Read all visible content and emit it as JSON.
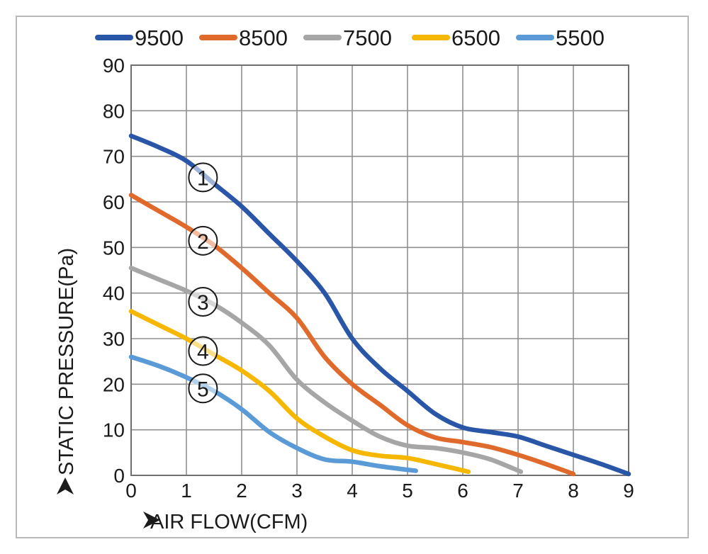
{
  "chart_data": {
    "type": "line",
    "xlabel": "AIR FLOW(CFM)",
    "ylabel": "STATIC PRESSURE(Pa)",
    "xlim": [
      0,
      9
    ],
    "ylim": [
      0,
      90
    ],
    "x_ticks": [
      "0",
      "1",
      "2",
      "3",
      "4",
      "5",
      "6",
      "7",
      "8",
      "9"
    ],
    "y_ticks": [
      "0",
      "10",
      "20",
      "30",
      "40",
      "50",
      "60",
      "70",
      "80",
      "90"
    ],
    "grid": true,
    "legend_position": "top",
    "series": [
      {
        "name": "9500",
        "color": "#2a56a8",
        "curve_label": "①",
        "x": [
          0,
          0.5,
          1,
          1.5,
          2,
          2.5,
          3,
          3.5,
          4,
          4.5,
          5,
          5.5,
          6,
          6.5,
          7,
          7.5,
          8,
          8.5,
          9
        ],
        "y": [
          74.5,
          72,
          69,
          64,
          59,
          53,
          47,
          40,
          30,
          23.5,
          18.5,
          13.5,
          10.5,
          9.5,
          8.5,
          6.5,
          4.5,
          2.5,
          0.3
        ]
      },
      {
        "name": "8500",
        "color": "#e06a2b",
        "curve_label": "②",
        "x": [
          0,
          0.5,
          1,
          1.5,
          2,
          2.5,
          3,
          3.5,
          4,
          4.5,
          5,
          5.5,
          6,
          6.5,
          7,
          7.5,
          8
        ],
        "y": [
          61.5,
          58,
          54.5,
          50.5,
          45.5,
          40,
          34.5,
          26,
          20,
          15.5,
          11,
          8.3,
          7.3,
          6.2,
          4.5,
          2.5,
          0.3
        ]
      },
      {
        "name": "7500",
        "color": "#a6a6a6",
        "curve_label": "③",
        "x": [
          0,
          0.5,
          1,
          1.5,
          2,
          2.5,
          3,
          3.5,
          4,
          4.5,
          5,
          5.5,
          6,
          6.5,
          7.05
        ],
        "y": [
          45.5,
          43,
          40.5,
          37.5,
          33.5,
          28.5,
          21,
          16,
          12,
          8.5,
          6.5,
          6,
          5,
          3.5,
          0.8
        ]
      },
      {
        "name": "6500",
        "color": "#f5b700",
        "curve_label": "④",
        "x": [
          0,
          0.5,
          1,
          1.5,
          2,
          2.5,
          3,
          3.5,
          4,
          4.5,
          5,
          5.5,
          6.1
        ],
        "y": [
          36,
          33,
          30,
          26.5,
          23,
          18.5,
          12.5,
          8.5,
          5.5,
          4.3,
          3.8,
          2.5,
          0.8
        ]
      },
      {
        "name": "5500",
        "color": "#5a9ad6",
        "curve_label": "⑤",
        "x": [
          0,
          0.5,
          1,
          1.5,
          2,
          2.5,
          3,
          3.5,
          4,
          4.5,
          5.15
        ],
        "y": [
          26,
          24,
          21.5,
          18.5,
          14.5,
          9.5,
          6,
          3.5,
          3,
          2,
          1
        ]
      }
    ]
  }
}
